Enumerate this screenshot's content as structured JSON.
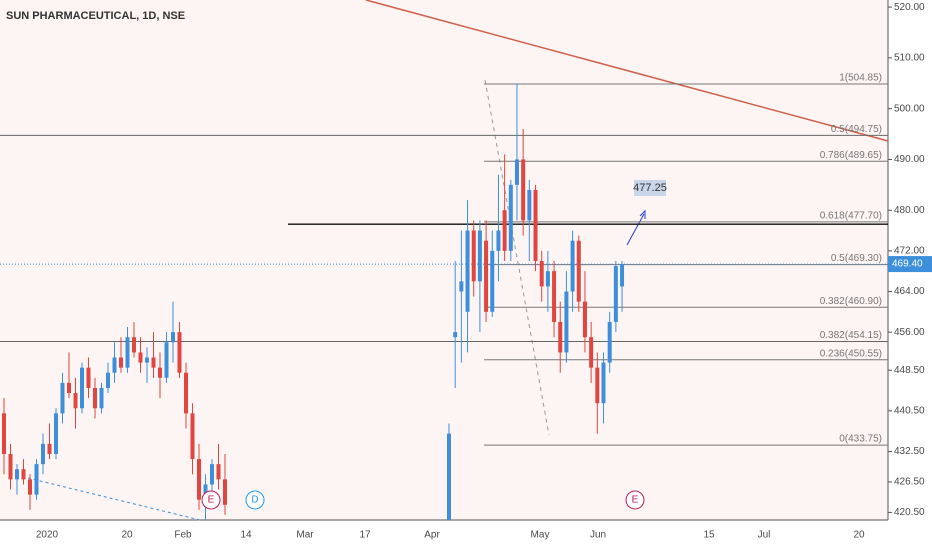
{
  "chart_data": {
    "type": "candlestick",
    "title": "SUN PHARMACEUTICAL, 1D, NSE",
    "up_color": "#3d8fdb",
    "down_color": "#e0463f",
    "open": [
      440,
      432,
      427,
      429,
      427,
      424,
      430,
      434,
      432,
      440,
      446,
      444,
      441,
      449,
      445,
      441,
      445,
      448,
      451,
      449,
      455,
      452,
      450,
      451,
      449,
      447,
      454,
      456,
      448,
      440,
      431,
      423,
      426,
      430,
      427,
      419,
      455,
      464,
      460,
      476,
      466,
      474,
      460,
      472,
      480,
      472,
      485,
      490,
      478,
      484,
      470,
      465,
      468,
      458,
      452,
      464,
      474,
      462,
      455,
      449,
      442,
      450,
      458,
      465
    ],
    "high": [
      443,
      434,
      430,
      431,
      428,
      431,
      436,
      438,
      441,
      448,
      452,
      447,
      450,
      451,
      447,
      446,
      450,
      454,
      455,
      457,
      458,
      455,
      453,
      456,
      452,
      456,
      462,
      458,
      450,
      442,
      434,
      428,
      431,
      434,
      432,
      438,
      470,
      476,
      482,
      478,
      478,
      478,
      476,
      487,
      491,
      486,
      505,
      496,
      486,
      485,
      472,
      472,
      470,
      462,
      468,
      476,
      475,
      468,
      458,
      452,
      452,
      460,
      470,
      470
    ],
    "low": [
      428,
      425,
      424,
      426,
      421,
      423,
      428,
      431,
      431,
      438,
      443,
      437,
      440,
      443,
      439,
      440,
      444,
      446,
      448,
      448,
      451,
      448,
      446,
      447,
      443,
      446,
      450,
      447,
      437,
      428,
      421,
      419,
      423,
      425,
      420,
      419,
      445,
      450,
      452,
      463,
      456,
      458,
      459,
      466,
      470,
      470,
      478,
      475,
      470,
      468,
      462,
      460,
      455,
      448,
      450,
      460,
      460,
      452,
      446,
      436,
      438,
      448,
      456,
      460
    ],
    "close": [
      432,
      427,
      429,
      427,
      424,
      430,
      434,
      432,
      440,
      446,
      444,
      441,
      449,
      445,
      441,
      445,
      448,
      451,
      449,
      455,
      452,
      450,
      451,
      449,
      447,
      454,
      456,
      448,
      440,
      431,
      423,
      426,
      430,
      427,
      422,
      436,
      456,
      466,
      476,
      466,
      476,
      460,
      472,
      476,
      472,
      485,
      490,
      478,
      484,
      470,
      465,
      468,
      458,
      452,
      464,
      474,
      462,
      455,
      449,
      442,
      450,
      458,
      469,
      469.4
    ],
    "ylim": [
      419,
      521.4
    ],
    "yticks": [
      {
        "value": 520,
        "label": "520.00"
      },
      {
        "value": 510,
        "label": "510.00"
      },
      {
        "value": 500,
        "label": "500.00"
      },
      {
        "value": 490,
        "label": "490.00"
      },
      {
        "value": 480,
        "label": "480.00"
      },
      {
        "value": 472,
        "label": "472.00"
      },
      {
        "value": 464,
        "label": "464.00"
      },
      {
        "value": 456,
        "label": "456.00"
      },
      {
        "value": 448.5,
        "label": "448.50"
      },
      {
        "value": 440.5,
        "label": "440.50"
      },
      {
        "value": 432.5,
        "label": "432.50"
      },
      {
        "value": 426.5,
        "label": "426.50"
      },
      {
        "value": 420.5,
        "label": "420.50"
      }
    ],
    "xtick_labels": [
      "2020",
      "20",
      "Feb",
      "14",
      "Mar",
      "17",
      "Apr",
      "May",
      "Jun",
      "15",
      "Jul",
      "20"
    ],
    "fib_levels": [
      {
        "value": 504.85,
        "label": "1(504.85)"
      },
      {
        "value": 489.65,
        "label": "0.786(489.65)"
      },
      {
        "value": 477.7,
        "label": "0.618(477.70)"
      },
      {
        "value": 469.3,
        "label": "0.5(469.30)"
      },
      {
        "value": 460.9,
        "label": "0.382(460.90)"
      },
      {
        "value": 450.55,
        "label": "0.236(450.55)"
      },
      {
        "value": 433.75,
        "label": "0(433.75)"
      }
    ],
    "fib_wide_levels": [
      {
        "value": 494.75,
        "label": "0.5(494.75)"
      },
      {
        "value": 454.15,
        "label": "0.382(454.15)"
      }
    ],
    "target": {
      "value": 477.25,
      "label": "477.25"
    },
    "last_price": {
      "value": 469.4,
      "label": "469.40"
    },
    "events": [
      "E",
      "D",
      "E"
    ]
  }
}
